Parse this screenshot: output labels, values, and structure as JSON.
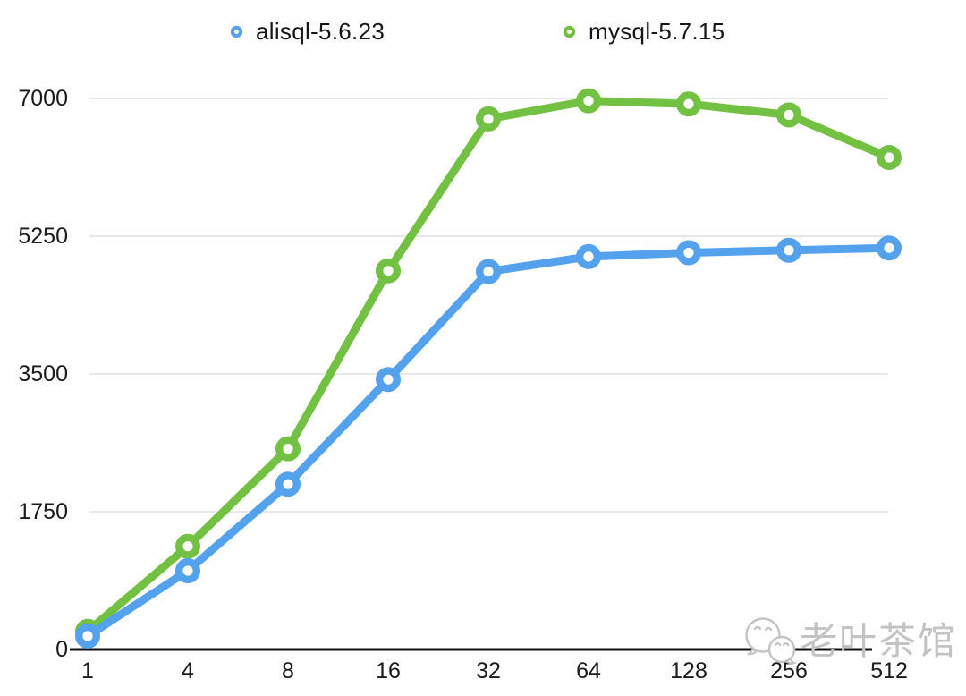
{
  "watermark": {
    "text": "老叶茶馆",
    "icon": "wechat-logo-icon",
    "color": "#c3c3c3"
  },
  "chart_data": {
    "type": "line",
    "title": "",
    "xlabel": "",
    "ylabel": "",
    "categories": [
      "1",
      "4",
      "8",
      "16",
      "32",
      "64",
      "128",
      "256",
      "512"
    ],
    "series": [
      {
        "name": "alisql-5.6.23",
        "color": "#54A1EE",
        "values": [
          170,
          1000,
          2100,
          3430,
          4800,
          4990,
          5040,
          5070,
          5100
        ]
      },
      {
        "name": "mysql-5.7.15",
        "color": "#73C143",
        "values": [
          230,
          1310,
          2550,
          4810,
          6740,
          6970,
          6930,
          6790,
          6250
        ]
      }
    ],
    "ylim": [
      0,
      7000
    ],
    "yticks": [
      0,
      1750,
      3500,
      5250,
      7000
    ],
    "grid": true,
    "legend_position": "top",
    "marker_style": "open-circle",
    "axis_color": "#111111",
    "gridline_color": "#d9d9d9",
    "background_color": "#ffffff"
  }
}
